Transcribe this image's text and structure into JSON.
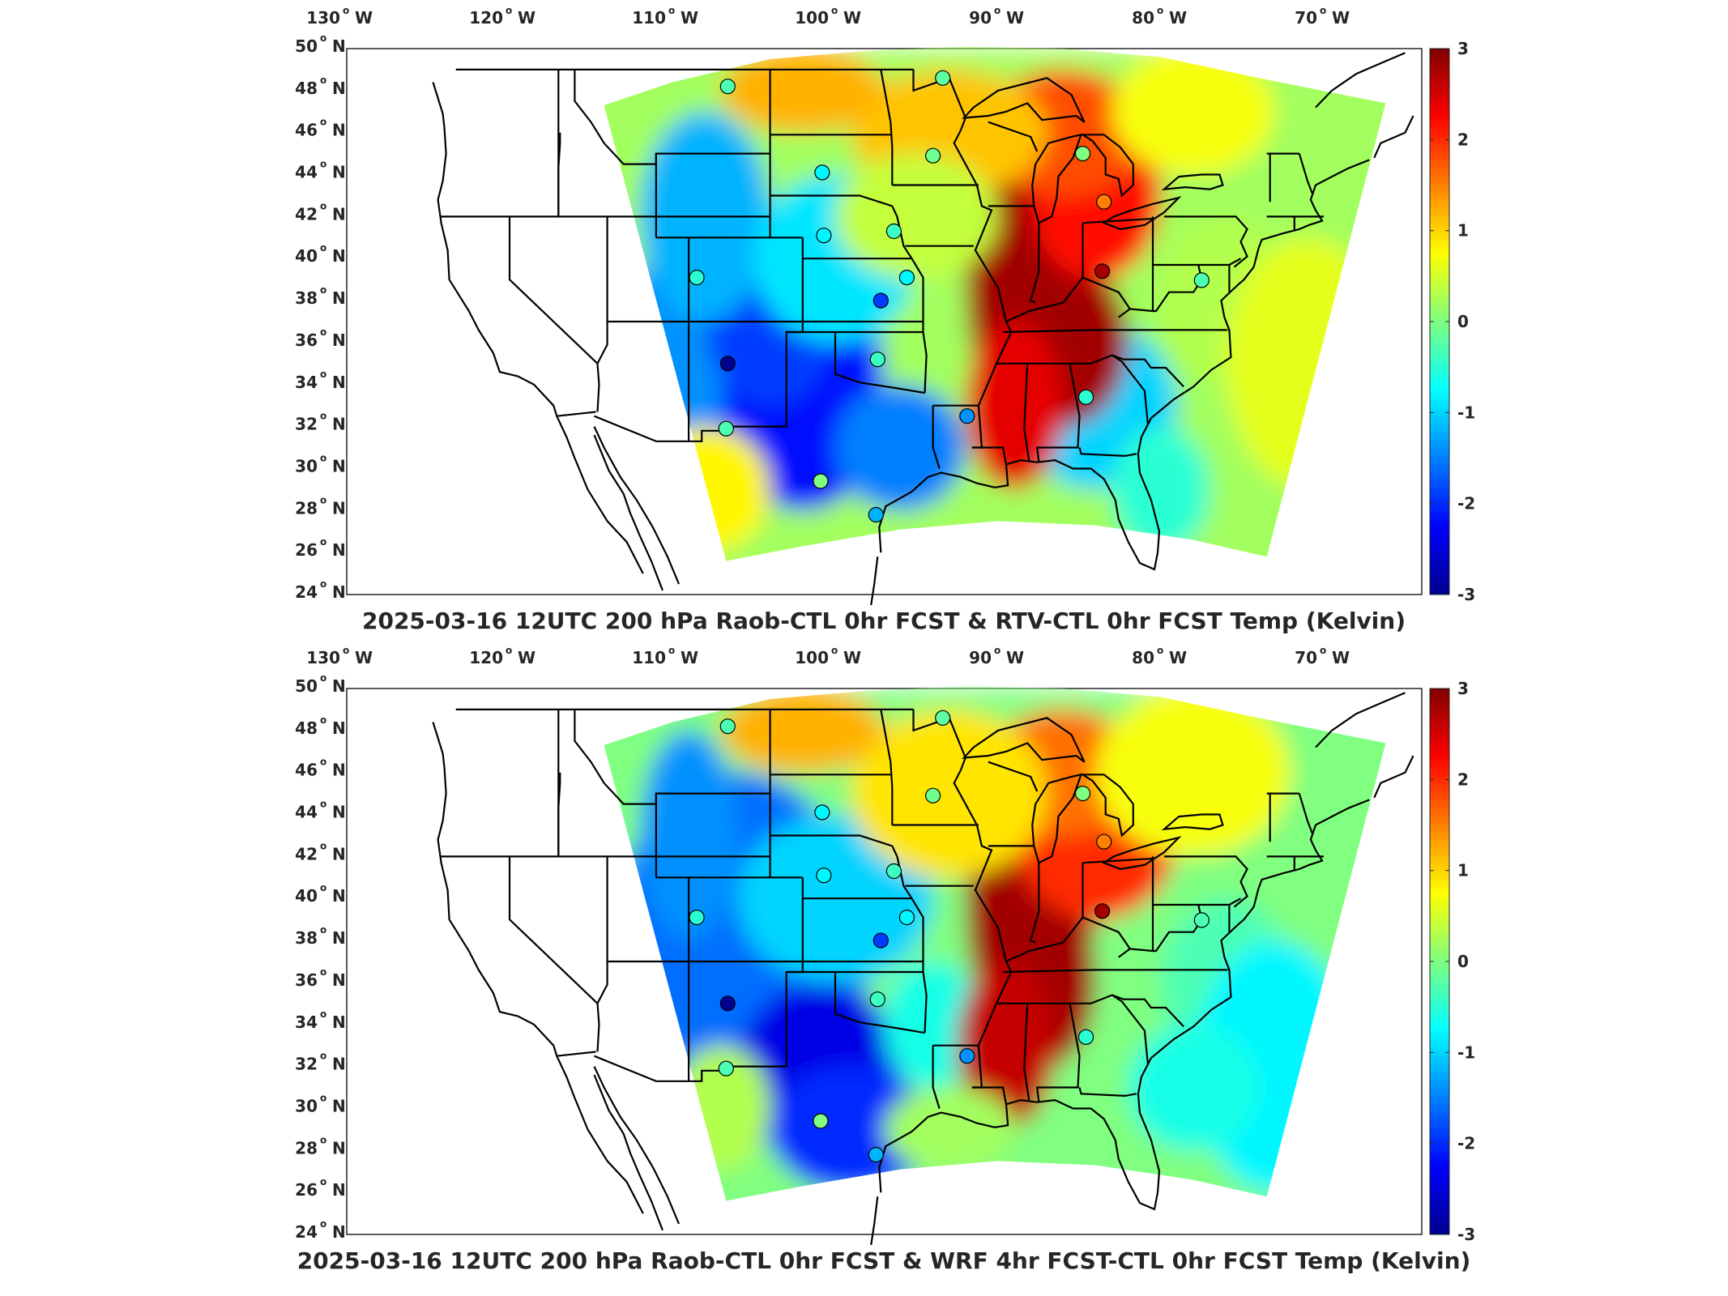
{
  "panels": [
    {
      "title": "2025-03-16 12UTC 200 hPa Raob-CTL 0hr FCST & RTV-CTL 0hr FCST Temp (Kelvin)",
      "variant": "rtv"
    },
    {
      "title": "2025-03-16 12UTC 200 hPa Raob-CTL 0hr FCST & WRF 4hr FCST-CTL 0hr FCST Temp (Kelvin)",
      "variant": "wrf"
    }
  ],
  "lon_ticks": [
    {
      "num": "130",
      "deg": "o",
      "hemi": "W"
    },
    {
      "num": "120",
      "deg": "o",
      "hemi": "W"
    },
    {
      "num": "110",
      "deg": "o",
      "hemi": "W"
    },
    {
      "num": "100",
      "deg": "o",
      "hemi": "W"
    },
    {
      "num": "90",
      "deg": "o",
      "hemi": "W"
    },
    {
      "num": "80",
      "deg": "o",
      "hemi": "W"
    },
    {
      "num": "70",
      "deg": "o",
      "hemi": "W"
    }
  ],
  "lat_ticks": [
    {
      "num": "50",
      "deg": "o",
      "hemi": "N"
    },
    {
      "num": "48",
      "deg": "o",
      "hemi": "N"
    },
    {
      "num": "46",
      "deg": "o",
      "hemi": "N"
    },
    {
      "num": "44",
      "deg": "o",
      "hemi": "N"
    },
    {
      "num": "42",
      "deg": "o",
      "hemi": "N"
    },
    {
      "num": "40",
      "deg": "o",
      "hemi": "N"
    },
    {
      "num": "38",
      "deg": "o",
      "hemi": "N"
    },
    {
      "num": "36",
      "deg": "o",
      "hemi": "N"
    },
    {
      "num": "34",
      "deg": "o",
      "hemi": "N"
    },
    {
      "num": "32",
      "deg": "o",
      "hemi": "N"
    },
    {
      "num": "30",
      "deg": "o",
      "hemi": "N"
    },
    {
      "num": "28",
      "deg": "o",
      "hemi": "N"
    },
    {
      "num": "26",
      "deg": "o",
      "hemi": "N"
    },
    {
      "num": "24",
      "deg": "o",
      "hemi": "N"
    }
  ],
  "colorbar": {
    "min": -3,
    "max": 3,
    "tick_labels": [
      "3",
      "2",
      "1",
      "0",
      "-1",
      "-2",
      "-3"
    ],
    "colormap": "jet"
  },
  "raob_stations": [
    {
      "lon": -106.6,
      "lat": 48.2,
      "value": -0.3
    },
    {
      "lon": -93.4,
      "lat": 48.6,
      "value": -0.2
    },
    {
      "lon": -94.0,
      "lat": 44.9,
      "value": -0.1
    },
    {
      "lon": -84.8,
      "lat": 45.0,
      "value": 0.0
    },
    {
      "lon": -100.8,
      "lat": 44.1,
      "value": -0.8
    },
    {
      "lon": -83.5,
      "lat": 42.7,
      "value": 1.5
    },
    {
      "lon": -100.7,
      "lat": 41.1,
      "value": -0.8
    },
    {
      "lon": -96.4,
      "lat": 41.3,
      "value": -0.4
    },
    {
      "lon": -108.5,
      "lat": 39.1,
      "value": -0.5
    },
    {
      "lon": -95.6,
      "lat": 39.1,
      "value": -0.8
    },
    {
      "lon": -97.2,
      "lat": 38.0,
      "value": -1.9
    },
    {
      "lon": -83.6,
      "lat": 39.4,
      "value": 2.8
    },
    {
      "lon": -97.4,
      "lat": 35.2,
      "value": -0.4
    },
    {
      "lon": -106.6,
      "lat": 35.0,
      "value": -2.9
    },
    {
      "lon": -91.9,
      "lat": 32.5,
      "value": -1.4
    },
    {
      "lon": -84.6,
      "lat": 33.4,
      "value": -0.5
    },
    {
      "lon": -106.7,
      "lat": 31.9,
      "value": -0.3
    },
    {
      "lon": -100.9,
      "lat": 29.4,
      "value": 0.0
    },
    {
      "lon": -97.5,
      "lat": 27.8,
      "value": -1.2
    },
    {
      "lon": -77.5,
      "lat": 38.97,
      "value": -0.3
    }
  ]
}
